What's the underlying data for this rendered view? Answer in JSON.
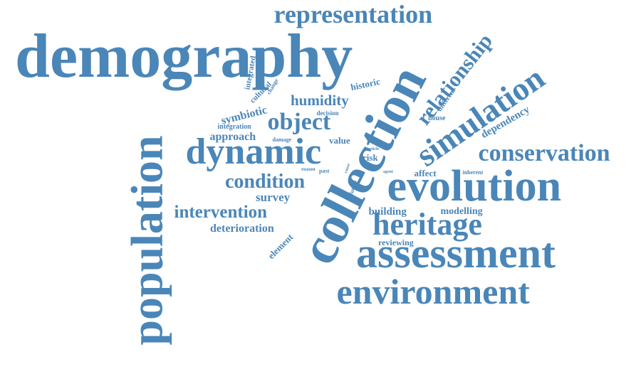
{
  "colors": {
    "word": "#4a86b8",
    "background": "#ffffff"
  },
  "words": [
    {
      "id": "demography",
      "text": "demography"
    },
    {
      "id": "collection",
      "text": "collection"
    },
    {
      "id": "population",
      "text": "population"
    },
    {
      "id": "evolution",
      "text": "evolution"
    },
    {
      "id": "assessment",
      "text": "assessment"
    },
    {
      "id": "environment",
      "text": "environment"
    },
    {
      "id": "dynamic",
      "text": "dynamic"
    },
    {
      "id": "simulation",
      "text": "simulation"
    },
    {
      "id": "heritage",
      "text": "heritage"
    },
    {
      "id": "representation",
      "text": "representation"
    },
    {
      "id": "conservation",
      "text": "conservation"
    },
    {
      "id": "relationship",
      "text": "relationship"
    },
    {
      "id": "object",
      "text": "object"
    },
    {
      "id": "condition",
      "text": "condition"
    },
    {
      "id": "intervention",
      "text": "intervention"
    },
    {
      "id": "humidity",
      "text": "humidity"
    },
    {
      "id": "deterioration",
      "text": "deterioration"
    },
    {
      "id": "dependency",
      "text": "dependency"
    },
    {
      "id": "symbiotic",
      "text": "symbiotic"
    },
    {
      "id": "approach",
      "text": "approach"
    },
    {
      "id": "survey",
      "text": "survey"
    },
    {
      "id": "building",
      "text": "building"
    },
    {
      "id": "modelling",
      "text": "modelling"
    },
    {
      "id": "affect",
      "text": "affect"
    },
    {
      "id": "historic",
      "text": "historic"
    },
    {
      "id": "reviewing",
      "text": "reviewing"
    },
    {
      "id": "element",
      "text": "element"
    },
    {
      "id": "integrated",
      "text": "integrated"
    },
    {
      "id": "cultural",
      "text": "cultural"
    },
    {
      "id": "value",
      "text": "value"
    },
    {
      "id": "risk",
      "text": "risk"
    },
    {
      "id": "integration",
      "text": "integration"
    },
    {
      "id": "different",
      "text": "different"
    },
    {
      "id": "house",
      "text": "house"
    },
    {
      "id": "change",
      "text": "change"
    },
    {
      "id": "decision",
      "text": "decision"
    },
    {
      "id": "damage",
      "text": "damage"
    },
    {
      "id": "inherent",
      "text": "inherent"
    },
    {
      "id": "reason",
      "text": "reason"
    },
    {
      "id": "past",
      "text": "past"
    },
    {
      "id": "future",
      "text": "future"
    },
    {
      "id": "agent",
      "text": "agent"
    },
    {
      "id": "article",
      "text": "article"
    },
    {
      "id": "cause",
      "text": "cause"
    }
  ]
}
